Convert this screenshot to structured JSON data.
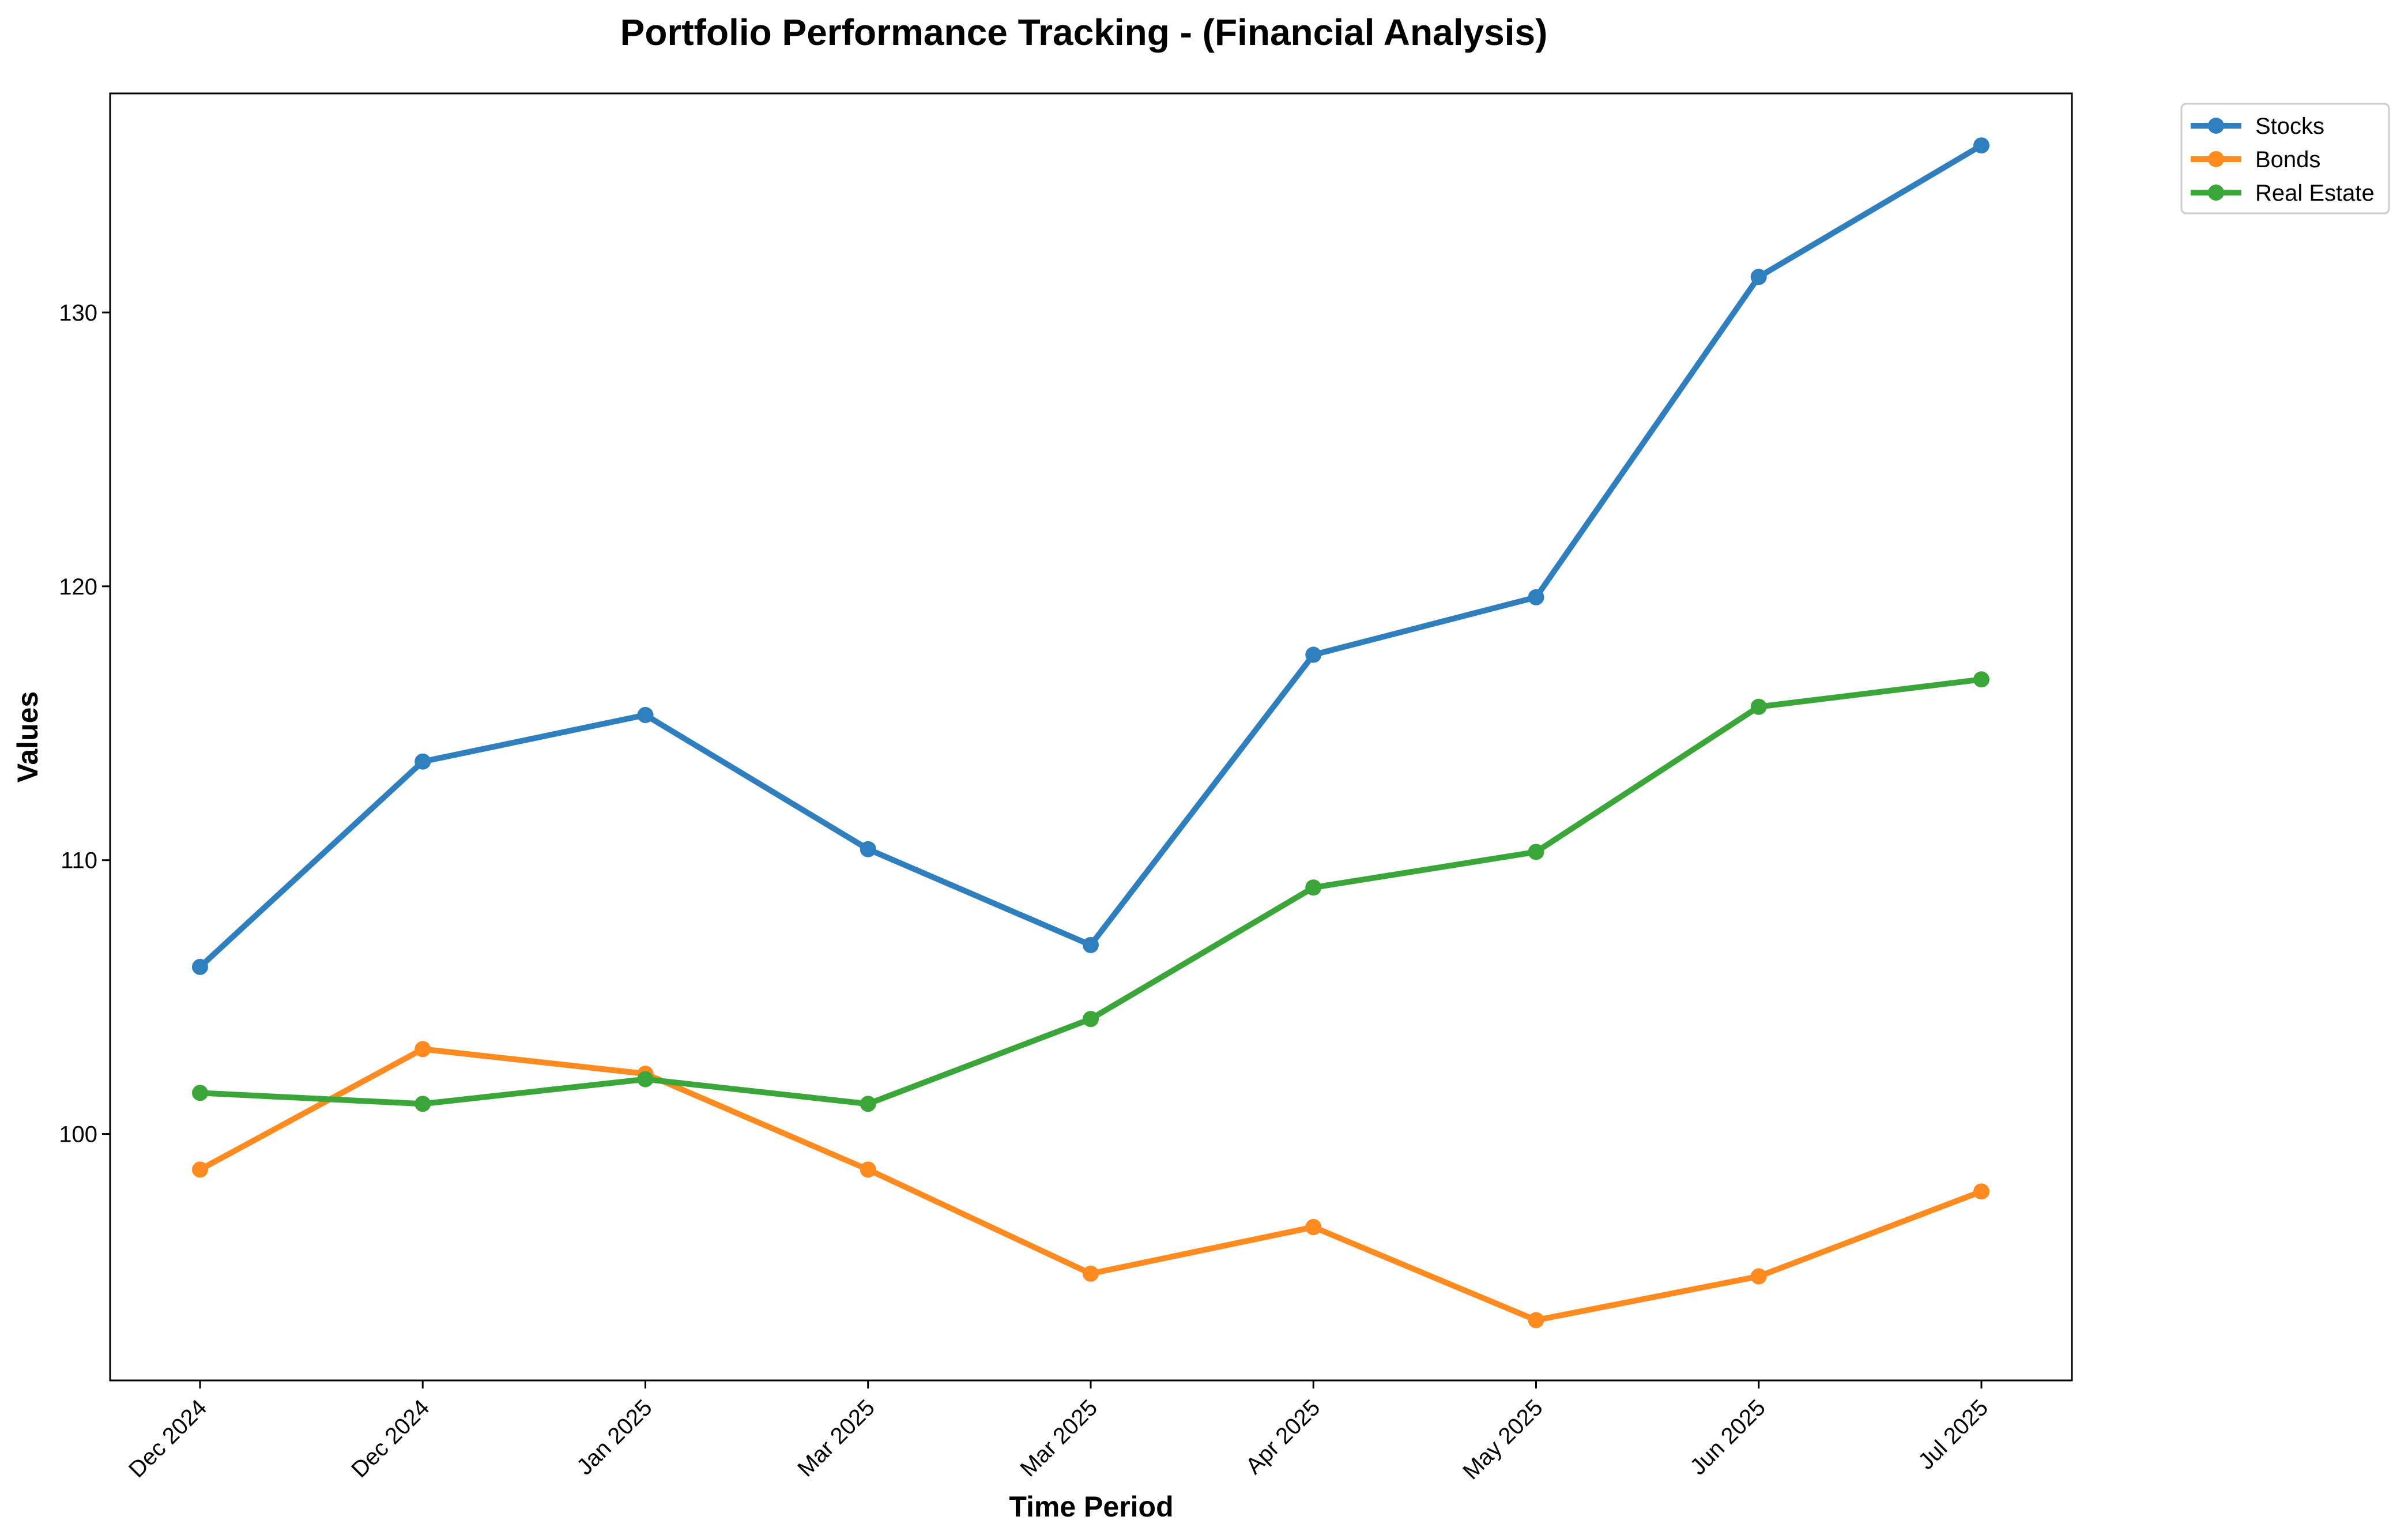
{
  "chart_data": {
    "type": "line",
    "title": "Portfolio Performance Tracking - (Financial Analysis)",
    "xlabel": "Time Period",
    "ylabel": "Values",
    "categories": [
      "Dec 2024",
      "Dec 2024",
      "Jan 2025",
      "Mar 2025",
      "Mar 2025",
      "Apr 2025",
      "May 2025",
      "Jun 2025",
      "Jul 2025"
    ],
    "yticks": [
      100,
      110,
      120,
      130
    ],
    "ylim": [
      91,
      138
    ],
    "grid": false,
    "legend_position": "top-right",
    "series": [
      {
        "name": "Stocks",
        "color": "#2f7fbf",
        "values": [
          106.1,
          113.6,
          115.3,
          110.4,
          106.9,
          117.5,
          119.6,
          131.3,
          136.1
        ]
      },
      {
        "name": "Bonds",
        "color": "#ff8a1f",
        "values": [
          98.7,
          103.1,
          102.2,
          98.7,
          94.9,
          96.6,
          93.2,
          94.8,
          97.9
        ]
      },
      {
        "name": "Real Estate",
        "color": "#3aa639",
        "values": [
          101.5,
          101.1,
          102.0,
          101.1,
          104.2,
          109.0,
          110.3,
          115.6,
          116.6
        ]
      }
    ]
  }
}
